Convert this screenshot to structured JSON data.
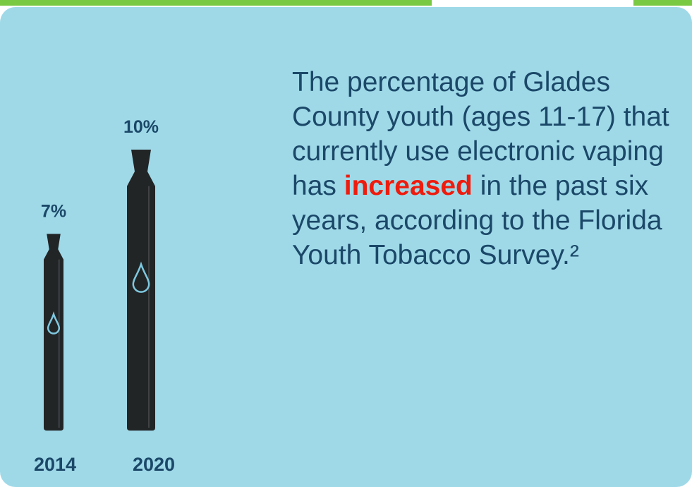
{
  "chart_data": {
    "type": "bar",
    "categories": [
      "2014",
      "2020"
    ],
    "values": [
      7,
      10
    ],
    "value_labels": [
      "7%",
      "10%"
    ],
    "color": "#222526",
    "description": [
      "The percentage of Glades County youth (ages 11-17) that currently use electronic vaping has",
      "increased",
      "in the past six years, according to the Florida Youth Tobacco Survey.²"
    ]
  }
}
